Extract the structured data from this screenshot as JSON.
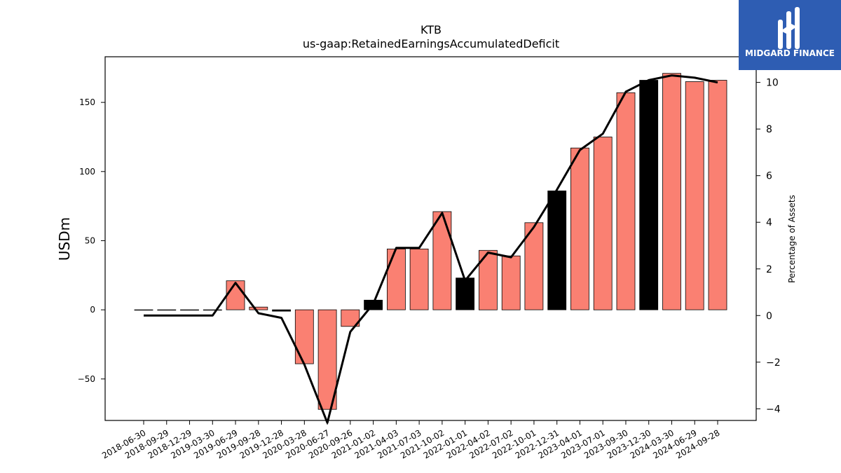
{
  "chart_data": {
    "type": "bar",
    "title": "KTB",
    "subtitle": "us-gaap:RetainedEarningsAccumulatedDeficit",
    "ylabel": "USDm",
    "ylabel_right": "Percentage of Assets",
    "ylim": [
      -80,
      183
    ],
    "ylim_right": [
      -4.5,
      11.1
    ],
    "yticks": [
      -50,
      0,
      50,
      100,
      150
    ],
    "yticks_right": [
      -4,
      -2,
      0,
      2,
      4,
      6,
      8,
      10
    ],
    "grid": false,
    "categories": [
      "2018-06-30",
      "2018-09-29",
      "2018-12-29",
      "2019-03-30",
      "2019-06-29",
      "2019-09-28",
      "2019-12-28",
      "2020-03-28",
      "2020-06-27",
      "2020-09-26",
      "2021-01-02",
      "2021-04-03",
      "2021-07-03",
      "2021-10-02",
      "2022-01-01",
      "2022-04-02",
      "2022-07-02",
      "2022-10-01",
      "2022-12-31",
      "2023-04-01",
      "2023-07-01",
      "2023-09-30",
      "2023-12-30",
      "2024-03-30",
      "2024-06-29",
      "2024-09-28"
    ],
    "series": [
      {
        "kind": "bar",
        "axis": "left",
        "values": [
          0,
          0,
          0,
          0,
          21,
          2,
          -1,
          -39,
          -72,
          -12,
          7,
          44,
          44,
          71,
          23,
          43,
          39,
          63,
          86,
          117,
          125,
          157,
          166,
          171,
          165,
          166
        ],
        "highlight": [
          false,
          false,
          false,
          false,
          false,
          false,
          true,
          false,
          false,
          false,
          true,
          false,
          false,
          false,
          true,
          false,
          false,
          false,
          true,
          false,
          false,
          false,
          true,
          false,
          false,
          false
        ]
      },
      {
        "kind": "line",
        "axis": "right",
        "values": [
          0,
          0,
          0,
          0,
          1.4,
          0.1,
          -0.1,
          -2.1,
          -4.6,
          -0.7,
          0.5,
          2.9,
          2.9,
          4.4,
          1.5,
          2.7,
          2.5,
          3.8,
          5.4,
          7.1,
          7.8,
          9.6,
          10.1,
          10.3,
          10.2,
          10.0
        ]
      }
    ],
    "colors": {
      "bar": "#fa8072",
      "bar_highlight": "#000000",
      "line": "#000000"
    }
  },
  "logo": {
    "text": "MIDGARD FINANCE",
    "background": "#2e5db3"
  }
}
